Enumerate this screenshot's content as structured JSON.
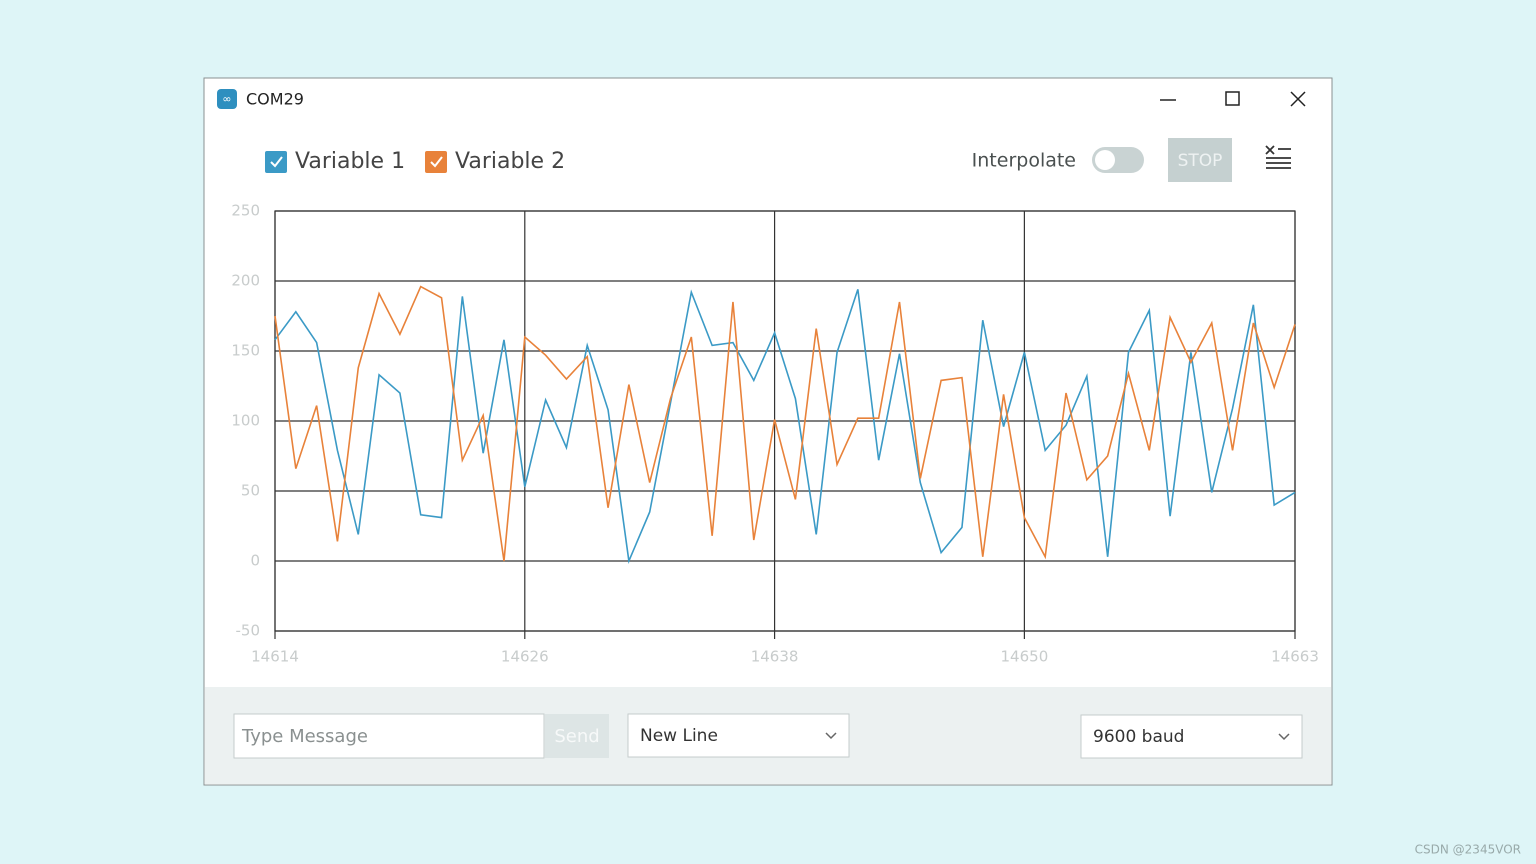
{
  "window": {
    "title": "COM29"
  },
  "controls": {
    "interpolate": "Interpolate",
    "stop": "STOP",
    "message_placeholder": "Type Message",
    "send": "Send",
    "line_ending": "New Line",
    "baud": "9600 baud"
  },
  "watermark": "CSDN @2345VOR",
  "chart_data": {
    "type": "line",
    "x": [
      14614,
      14615,
      14616,
      14617,
      14618,
      14619,
      14620,
      14621,
      14622,
      14623,
      14624,
      14625,
      14626,
      14627,
      14628,
      14629,
      14630,
      14631,
      14632,
      14633,
      14634,
      14635,
      14636,
      14637,
      14638,
      14639,
      14640,
      14641,
      14642,
      14643,
      14644,
      14645,
      14646,
      14647,
      14648,
      14649,
      14650,
      14651,
      14652,
      14653,
      14654,
      14655,
      14656,
      14657,
      14658,
      14659,
      14660,
      14661,
      14662,
      14663
    ],
    "series": [
      {
        "name": "Variable 1",
        "color": "#3b9ac6",
        "values": [
          158,
          178,
          156,
          79,
          19,
          133,
          120,
          33,
          31,
          189,
          77,
          158,
          53,
          115,
          81,
          154,
          108,
          0,
          35,
          113,
          192,
          154,
          156,
          129,
          163,
          116,
          19,
          149,
          194,
          72,
          148,
          56,
          6,
          24,
          172,
          96,
          149,
          79,
          97,
          132,
          3,
          149,
          179,
          32,
          149,
          49,
          109,
          183,
          40,
          49
        ]
      },
      {
        "name": "Variable 2",
        "color": "#e8823a",
        "values": [
          175,
          66,
          111,
          14,
          138,
          191,
          162,
          196,
          188,
          72,
          104,
          0,
          160,
          147,
          130,
          146,
          38,
          126,
          56,
          116,
          160,
          18,
          185,
          15,
          101,
          44,
          166,
          69,
          102,
          102,
          185,
          59,
          129,
          131,
          3,
          119,
          31,
          3,
          120,
          58,
          75,
          134,
          79,
          174,
          142,
          170,
          79,
          170,
          124,
          169
        ]
      }
    ],
    "xlim": [
      14614,
      14663
    ],
    "xticks": [
      14614,
      14626,
      14638,
      14650,
      14663
    ],
    "ylim": [
      -50,
      250
    ],
    "yticks": [
      -50,
      0,
      50,
      100,
      150,
      200,
      250
    ],
    "grid": true
  }
}
